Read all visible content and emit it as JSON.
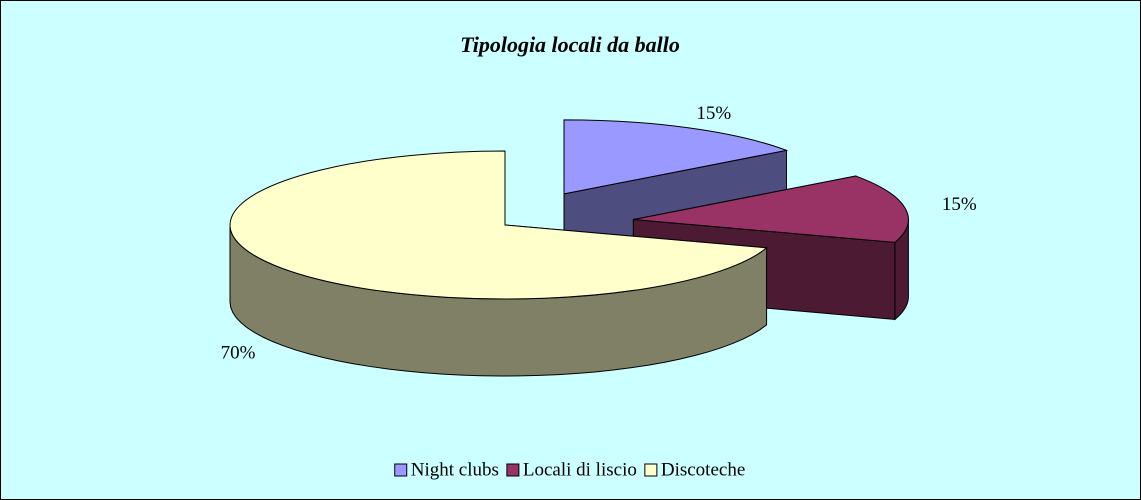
{
  "chart_data": {
    "type": "pie3d",
    "title": "Tipologia locali da ballo",
    "categories": [
      "Night clubs",
      "Locali di liscio",
      "Discoteche"
    ],
    "values": [
      15,
      15,
      70
    ],
    "value_labels": [
      "15%",
      "15%",
      "70%"
    ],
    "colors": [
      "#9999ff",
      "#993366",
      "#ffffcc"
    ],
    "legend": "bottom"
  }
}
